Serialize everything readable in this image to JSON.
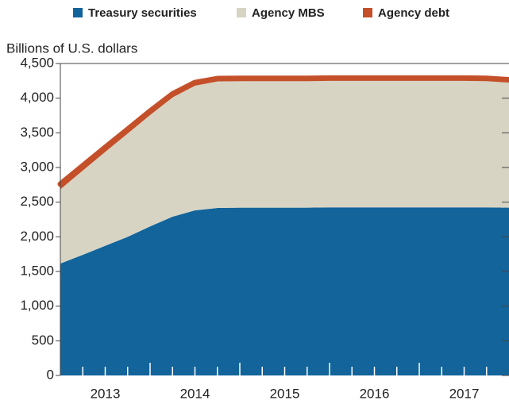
{
  "chart_data": {
    "type": "stacked_area",
    "y_axis_label": "Billions of U.S. dollars",
    "x": [
      2013,
      2013.25,
      2013.5,
      2013.75,
      2014,
      2014.25,
      2014.5,
      2014.75,
      2015,
      2015.25,
      2015.5,
      2015.75,
      2016,
      2016.25,
      2016.5,
      2016.75,
      2017,
      2017.25,
      2017.5,
      2017.75,
      2018
    ],
    "series": [
      {
        "name": "Treasury securities",
        "color": "#12649b",
        "values": [
          1615,
          1740,
          1870,
          2000,
          2150,
          2290,
          2382,
          2416,
          2420,
          2420,
          2420,
          2420,
          2425,
          2425,
          2425,
          2425,
          2425,
          2425,
          2425,
          2425,
          2420
        ]
      },
      {
        "name": "Agency MBS",
        "color": "#d8d4c4",
        "values": [
          1070,
          1215,
          1355,
          1490,
          1606,
          1720,
          1798,
          1826,
          1827,
          1830,
          1832,
          1835,
          1837,
          1840,
          1843,
          1845,
          1847,
          1850,
          1853,
          1850,
          1837
        ]
      },
      {
        "name": "Agency debt",
        "color": "#c4502a",
        "values": [
          75,
          70,
          65,
          60,
          57,
          50,
          45,
          40,
          38,
          35,
          33,
          30,
          28,
          25,
          22,
          20,
          18,
          15,
          12,
          10,
          8
        ]
      }
    ],
    "xlim": [
      2013,
      2018
    ],
    "xticks": [
      {
        "value": 2013.5,
        "label": "2013"
      },
      {
        "value": 2014.5,
        "label": "2014"
      },
      {
        "value": 2015.5,
        "label": "2015"
      },
      {
        "value": 2016.5,
        "label": "2016"
      },
      {
        "value": 2017.5,
        "label": "2017"
      }
    ],
    "xticks_minor": [
      2013.25,
      2013.5,
      2013.75,
      2014,
      2014.25,
      2014.5,
      2014.75,
      2015,
      2015.25,
      2015.5,
      2015.75,
      2016,
      2016.25,
      2016.5,
      2016.75,
      2017,
      2017.25,
      2017.5,
      2017.75
    ],
    "ylim": [
      0,
      4500
    ],
    "yticks": [
      0,
      {
        "value": 500,
        "label": "500"
      },
      {
        "value": 1000,
        "label": "1,000"
      },
      {
        "value": 1500,
        "label": "1,500"
      },
      {
        "value": 2000,
        "label": "2,000"
      },
      {
        "value": 2500,
        "label": "2,500"
      },
      {
        "value": 3000,
        "label": "3,000"
      },
      {
        "value": 3500,
        "label": "3,500"
      },
      {
        "value": 4000,
        "label": "4,000"
      },
      {
        "value": 4500,
        "label": "4,500"
      }
    ],
    "legend": "top"
  }
}
